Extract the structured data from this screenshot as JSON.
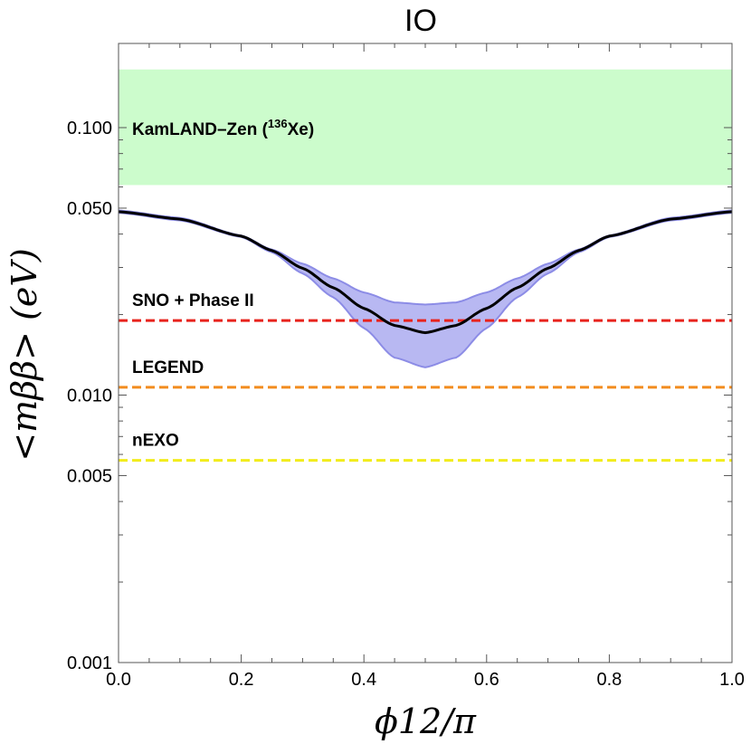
{
  "chart_data": {
    "type": "line",
    "title": "IO",
    "xlabel": "ϕ12/π",
    "ylabel": "<mββ> (eV)",
    "xlim": [
      0.0,
      1.0
    ],
    "ylim": [
      0.001,
      0.18
    ],
    "yscale": "log",
    "grid": false,
    "x_ticks": [
      "0.0",
      "0.2",
      "0.4",
      "0.6",
      "0.8",
      "1.0"
    ],
    "x_tick_values": [
      0.0,
      0.2,
      0.4,
      0.6,
      0.8,
      1.0
    ],
    "y_ticks": [
      "0.001",
      "0.005",
      "0.010",
      "0.050",
      "0.100"
    ],
    "y_tick_values": [
      0.001,
      0.005,
      0.01,
      0.05,
      0.1
    ],
    "kamland": {
      "label_prefix": "KamLAND–Zen (",
      "label_isotope_mass": "136",
      "label_suffix": "Xe)",
      "y_low": 0.061,
      "y_high": 0.165,
      "color": "#ccfccc"
    },
    "sensitivity_lines": [
      {
        "name": "SNO + Phase II",
        "y": 0.019,
        "color": "#e8231c"
      },
      {
        "name": "LEGEND",
        "y": 0.0107,
        "color": "#f28c1e"
      },
      {
        "name": "nEXO",
        "y": 0.0057,
        "color": "#f2ec1c"
      }
    ],
    "band": {
      "color": "#b8b8f2",
      "edge_color": "#8c8ce6",
      "x": [
        0.0,
        0.1,
        0.2,
        0.25,
        0.3,
        0.35,
        0.4,
        0.45,
        0.5,
        0.55,
        0.6,
        0.65,
        0.7,
        0.75,
        0.8,
        0.9,
        1.0
      ],
      "upper": [
        0.049,
        0.046,
        0.0395,
        0.035,
        0.031,
        0.0273,
        0.0242,
        0.0222,
        0.0218,
        0.0222,
        0.0242,
        0.0273,
        0.031,
        0.035,
        0.0395,
        0.046,
        0.049
      ],
      "lower": [
        0.048,
        0.045,
        0.039,
        0.0342,
        0.0285,
        0.0232,
        0.0178,
        0.0138,
        0.0127,
        0.0138,
        0.0178,
        0.0232,
        0.0285,
        0.0342,
        0.039,
        0.045,
        0.048
      ]
    },
    "series": [
      {
        "color": "#000000",
        "x": [
          0.0,
          0.1,
          0.2,
          0.25,
          0.3,
          0.35,
          0.4,
          0.45,
          0.5,
          0.55,
          0.6,
          0.65,
          0.7,
          0.75,
          0.8,
          0.9,
          1.0
        ],
        "values": [
          0.0485,
          0.0455,
          0.0393,
          0.0347,
          0.0298,
          0.0252,
          0.0211,
          0.0182,
          0.0171,
          0.0182,
          0.0211,
          0.0252,
          0.0298,
          0.0347,
          0.0393,
          0.0455,
          0.0485
        ]
      }
    ]
  }
}
